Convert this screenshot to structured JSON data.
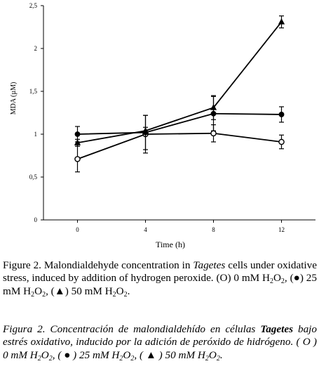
{
  "chart_data": {
    "type": "line",
    "x": [
      0,
      4,
      8,
      12
    ],
    "xticks": [
      "0",
      "4",
      "8",
      "12"
    ],
    "yticks": [
      "0",
      "0,5",
      "1",
      "1,5",
      "2",
      "2,5"
    ],
    "xlabel": "Time (h)",
    "ylabel": "MDA (µM)",
    "xlim": [
      -2,
      14
    ],
    "ylim": [
      0,
      2.5
    ],
    "grid": false,
    "series": [
      {
        "marker": "open-circle",
        "values": [
          0.71,
          1.0,
          1.01,
          0.91
        ],
        "error": [
          0.15,
          0.22,
          0.1,
          0.08
        ]
      },
      {
        "marker": "filled-circle",
        "values": [
          1.0,
          1.02,
          1.24,
          1.23
        ],
        "error": [
          0.09,
          0.2,
          0.2,
          0.09
        ]
      },
      {
        "marker": "filled-triangle",
        "values": [
          0.9,
          1.04,
          1.31,
          2.31
        ],
        "error": [
          0.04,
          0.04,
          0.14,
          0.07
        ]
      }
    ]
  },
  "caption_en": {
    "lead": "Figure 2. Malondialdehyde concentration in ",
    "genus": "Tagetes",
    "body": " cells under oxidative stress, induced by addition of hydrogen peroxide. (O) 0 mM H",
    "t1": "O",
    "t2": ", (●) 25 mM H",
    "t3": "O",
    "t4": ", (▲) 50 mM H",
    "t5": "O",
    "t6": ".",
    "sub2": "2"
  },
  "caption_es": {
    "lead": "Figura 2. Concentración de malondialdehído en células ",
    "genus": "Tagetes",
    "body": " bajo estrés oxidativo, inducido por la adición de peróxido de hidrógeno. ( O ) 0 mM H",
    "t1": "O",
    "t2": ", ( ● ) 25 mM H",
    "t3": "O",
    "t4": ", ( ▲ ) 50 mM H",
    "t5": "O",
    "t6": ".",
    "sub2": "2"
  }
}
